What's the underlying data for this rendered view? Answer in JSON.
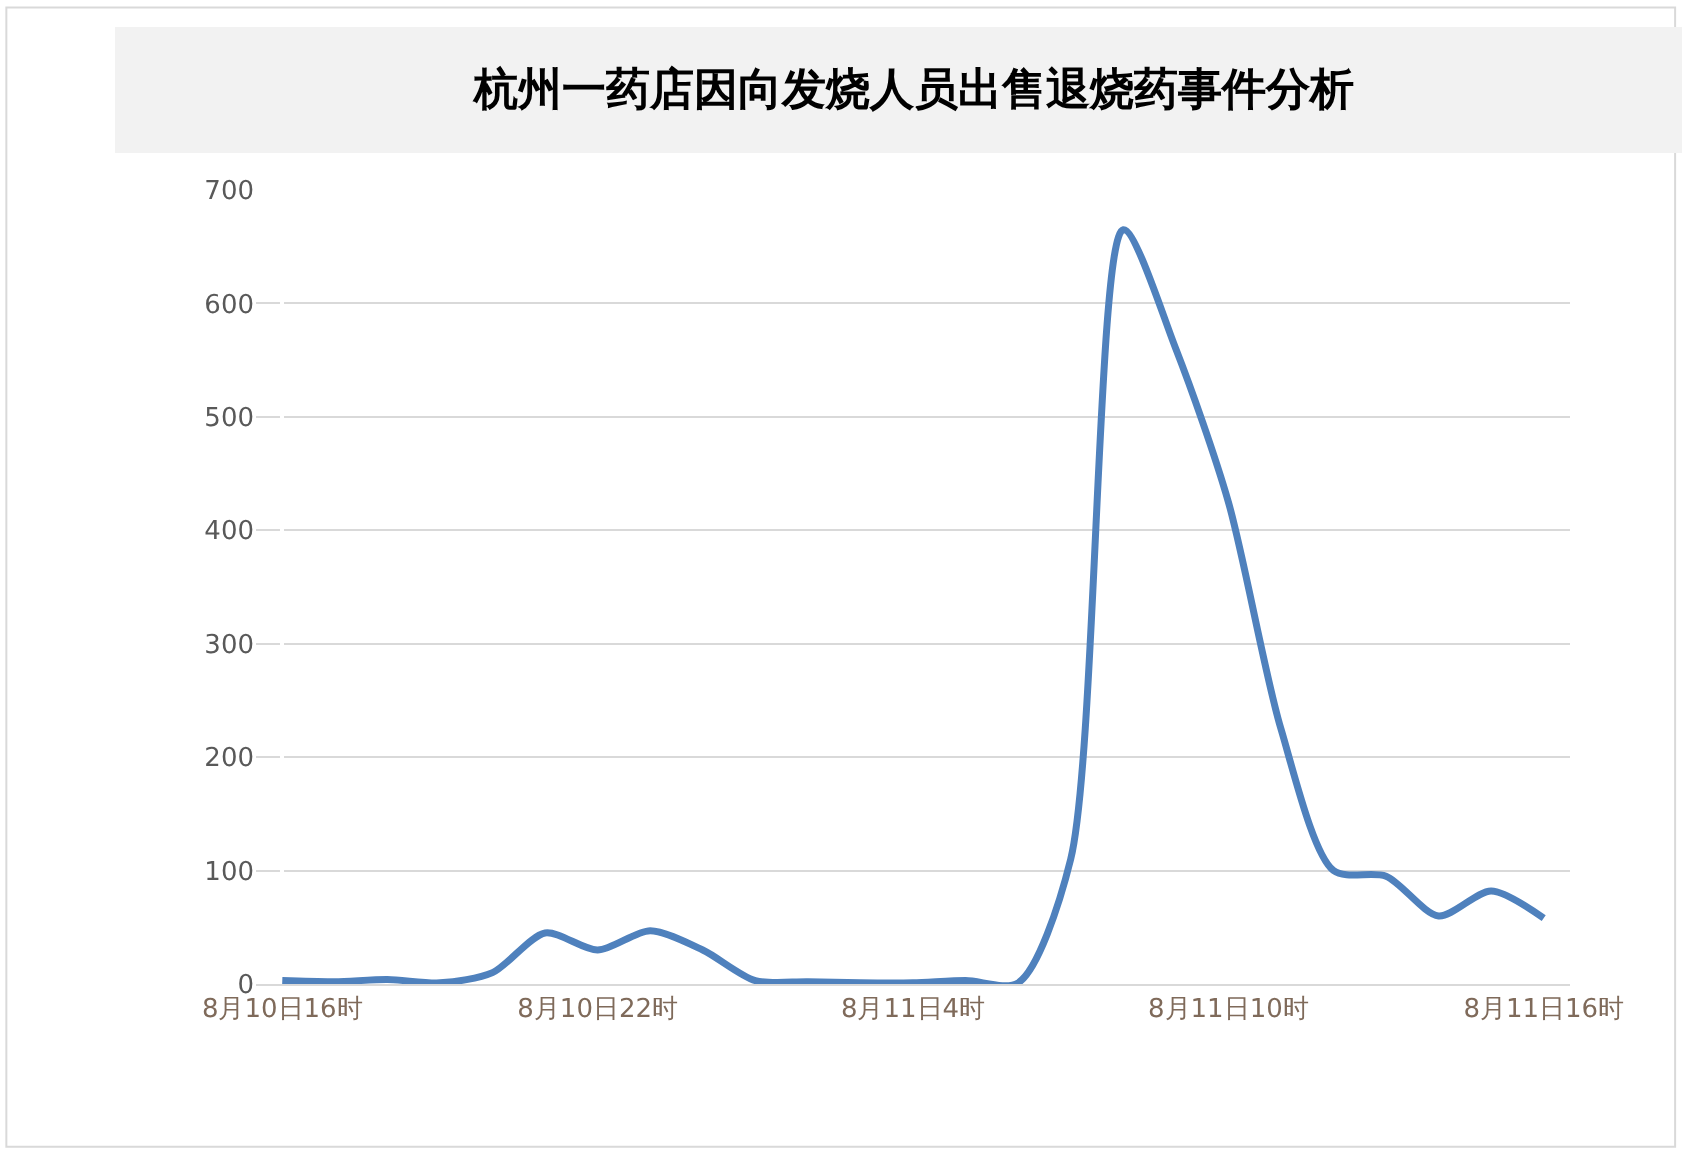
{
  "chart_data": {
    "type": "line",
    "title": "杭州一药店因向发烧人员出售退烧药事件分析",
    "categories": [
      "8月10日16时",
      null,
      null,
      null,
      null,
      null,
      "8月10日22时",
      null,
      null,
      null,
      null,
      null,
      "8月11日4时",
      null,
      null,
      null,
      null,
      null,
      "8月11日10时",
      null,
      null,
      null,
      null,
      null,
      "8月11日16时"
    ],
    "series": [
      {
        "color": "#4f81bd",
        "values": [
          3,
          2,
          4,
          1,
          10,
          45,
          30,
          47,
          30,
          3,
          2,
          1,
          1,
          3,
          1,
          110,
          665,
          560,
          425,
          225,
          100,
          95,
          60,
          82,
          58
        ]
      }
    ],
    "ylim": [
      0,
      700
    ],
    "yticks": [
      0,
      100,
      200,
      300,
      400,
      500,
      600,
      700
    ],
    "grid": "y",
    "marker": "none",
    "line_style": "solid"
  }
}
